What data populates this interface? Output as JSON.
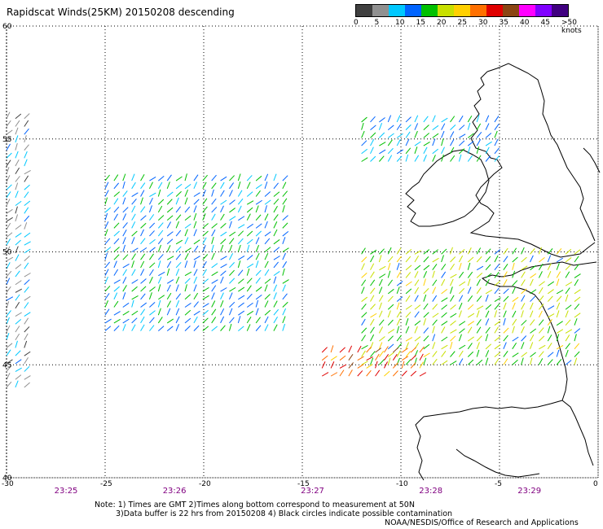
{
  "title": "Rapidscat Winds(25KM) 20150208 descending",
  "legend": {
    "labels": [
      "0",
      "5",
      "10",
      "15",
      "20",
      "25",
      "30",
      "35",
      "40",
      "45",
      ">50 knots"
    ],
    "colors": [
      "#404040",
      "#909090",
      "#00c8ff",
      "#0064ff",
      "#00c000",
      "#c8e000",
      "#ffd000",
      "#ff7000",
      "#e00000",
      "#8b4513",
      "#ff00ff",
      "#8000ff",
      "#400080"
    ]
  },
  "axes": {
    "lat_labels": [
      "60",
      "55",
      "50",
      "45",
      "40"
    ],
    "lon_labels": [
      "-30",
      "-25",
      "-20",
      "-15",
      "-10",
      "-5",
      "0"
    ]
  },
  "time_labels": [
    "23:25",
    "23:26",
    "23:27",
    "23:28",
    "23:29"
  ],
  "notes": {
    "line1": "Note: 1) Times are GMT 2)Times along bottom correspond to measurement at 50N",
    "line2": "3)Data buffer is 22 hrs from 20150208 4) Black circles indicate possible contamination",
    "credit": "NOAA/NESDIS/Office of Research and Applications"
  },
  "map": {
    "lon_range": [
      -30,
      0
    ],
    "lat_range": [
      40,
      60
    ],
    "grid": true,
    "regions": [
      {
        "name": "orbit-swath-west",
        "lon": [
          -30,
          -29
        ],
        "lat": [
          44,
          56
        ],
        "speed": 8
      },
      {
        "name": "wind-region-west-central",
        "lon": [
          -25,
          -16
        ],
        "lat": [
          46.5,
          53.5
        ],
        "speed": 15
      },
      {
        "name": "wind-region-ireland-offshore",
        "lon": [
          -12,
          -5
        ],
        "lat": [
          54,
          56
        ],
        "speed": 14
      },
      {
        "name": "wind-region-biscay",
        "lon": [
          -12,
          -1
        ],
        "lat": [
          45,
          50
        ],
        "speed": 20
      },
      {
        "name": "wind-region-southwest-high",
        "lon": [
          -14,
          -9
        ],
        "lat": [
          44.5,
          45.8
        ],
        "speed": 32
      }
    ]
  }
}
